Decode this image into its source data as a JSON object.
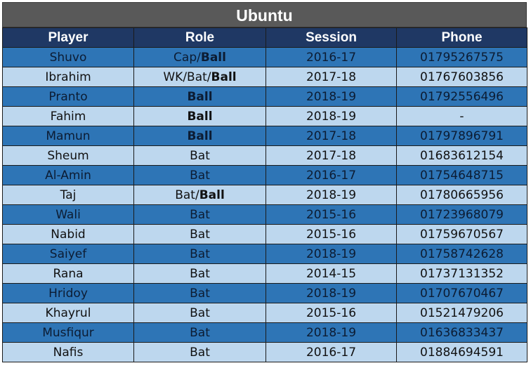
{
  "title": "Ubuntu",
  "headers": [
    "Player",
    "Role",
    "Session",
    "Phone"
  ],
  "colors": {
    "title_bg": "#595959",
    "header_bg": "#1f3864",
    "row_dark": "#2e75b6",
    "row_light": "#bdd7ee"
  },
  "rows": [
    {
      "player": "Shuvo",
      "role": [
        {
          "t": "Cap/",
          "b": false
        },
        {
          "t": "Ball",
          "b": true
        }
      ],
      "session": "2016-17",
      "phone": "01795267575"
    },
    {
      "player": "Ibrahim",
      "role": [
        {
          "t": "WK/Bat/",
          "b": false
        },
        {
          "t": "Ball",
          "b": true
        }
      ],
      "session": "2017-18",
      "phone": "01767603856"
    },
    {
      "player": "Pranto",
      "role": [
        {
          "t": "Ball",
          "b": true
        }
      ],
      "session": "2018-19",
      "phone": "01792556496"
    },
    {
      "player": "Fahim",
      "role": [
        {
          "t": "Ball",
          "b": true
        }
      ],
      "session": "2018-19",
      "phone": "-"
    },
    {
      "player": "Mamun",
      "role": [
        {
          "t": "Ball",
          "b": true
        }
      ],
      "session": "2017-18",
      "phone": "01797896791"
    },
    {
      "player": "Sheum",
      "role": [
        {
          "t": "Bat",
          "b": false
        }
      ],
      "session": "2017-18",
      "phone": "01683612154"
    },
    {
      "player": "Al-Amin",
      "role": [
        {
          "t": "Bat",
          "b": false
        }
      ],
      "session": "2016-17",
      "phone": "01754648715"
    },
    {
      "player": "Taj",
      "role": [
        {
          "t": "Bat/",
          "b": false
        },
        {
          "t": "Ball",
          "b": true
        }
      ],
      "session": "2018-19",
      "phone": "01780665956"
    },
    {
      "player": "Wali",
      "role": [
        {
          "t": "Bat",
          "b": false
        }
      ],
      "session": "2015-16",
      "phone": "01723968079"
    },
    {
      "player": "Nabid",
      "role": [
        {
          "t": "Bat",
          "b": false
        }
      ],
      "session": "2015-16",
      "phone": "01759670567"
    },
    {
      "player": "Saiyef",
      "role": [
        {
          "t": "Bat",
          "b": false
        }
      ],
      "session": "2018-19",
      "phone": "01758742628"
    },
    {
      "player": "Rana",
      "role": [
        {
          "t": "Bat",
          "b": false
        }
      ],
      "session": "2014-15",
      "phone": "01737131352"
    },
    {
      "player": "Hridoy",
      "role": [
        {
          "t": "Bat",
          "b": false
        }
      ],
      "session": "2018-19",
      "phone": "01707670467"
    },
    {
      "player": "Khayrul",
      "role": [
        {
          "t": "Bat",
          "b": false
        }
      ],
      "session": "2015-16",
      "phone": "01521479206"
    },
    {
      "player": "Musfiqur",
      "role": [
        {
          "t": "Bat",
          "b": false
        }
      ],
      "session": "2018-19",
      "phone": "01636833437"
    },
    {
      "player": "Nafis",
      "role": [
        {
          "t": "Bat",
          "b": false
        }
      ],
      "session": "2016-17",
      "phone": "01884694591"
    }
  ]
}
